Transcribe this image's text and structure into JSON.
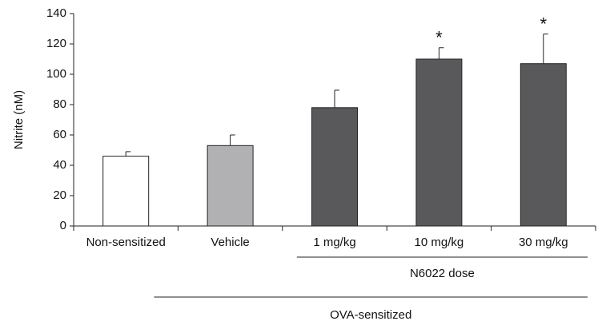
{
  "chart_data": {
    "type": "bar",
    "ylabel": "Nitrite (nM)",
    "categories": [
      "Non-sensitized",
      "Vehicle",
      "1 mg/kg",
      "10 mg/kg",
      "30 mg/kg"
    ],
    "values": [
      46,
      53,
      78,
      110,
      107
    ],
    "errors": [
      3,
      7,
      11.5,
      7.5,
      19.5
    ],
    "colors": [
      "#ffffff",
      "#b1b1b3",
      "#59595b",
      "#59595b",
      "#59595b"
    ],
    "annotations": [
      null,
      null,
      null,
      "*",
      "*"
    ],
    "groups": [
      {
        "label": "N6022 dose",
        "members": [
          "1 mg/kg",
          "10 mg/kg",
          "30 mg/kg"
        ]
      },
      {
        "label": "OVA-sensitized",
        "members": [
          "Vehicle",
          "1 mg/kg",
          "10 mg/kg",
          "30 mg/kg"
        ]
      }
    ],
    "ylim": [
      0,
      140
    ],
    "yticks": [
      0,
      20,
      40,
      60,
      80,
      100,
      120,
      140
    ],
    "grid": false
  }
}
